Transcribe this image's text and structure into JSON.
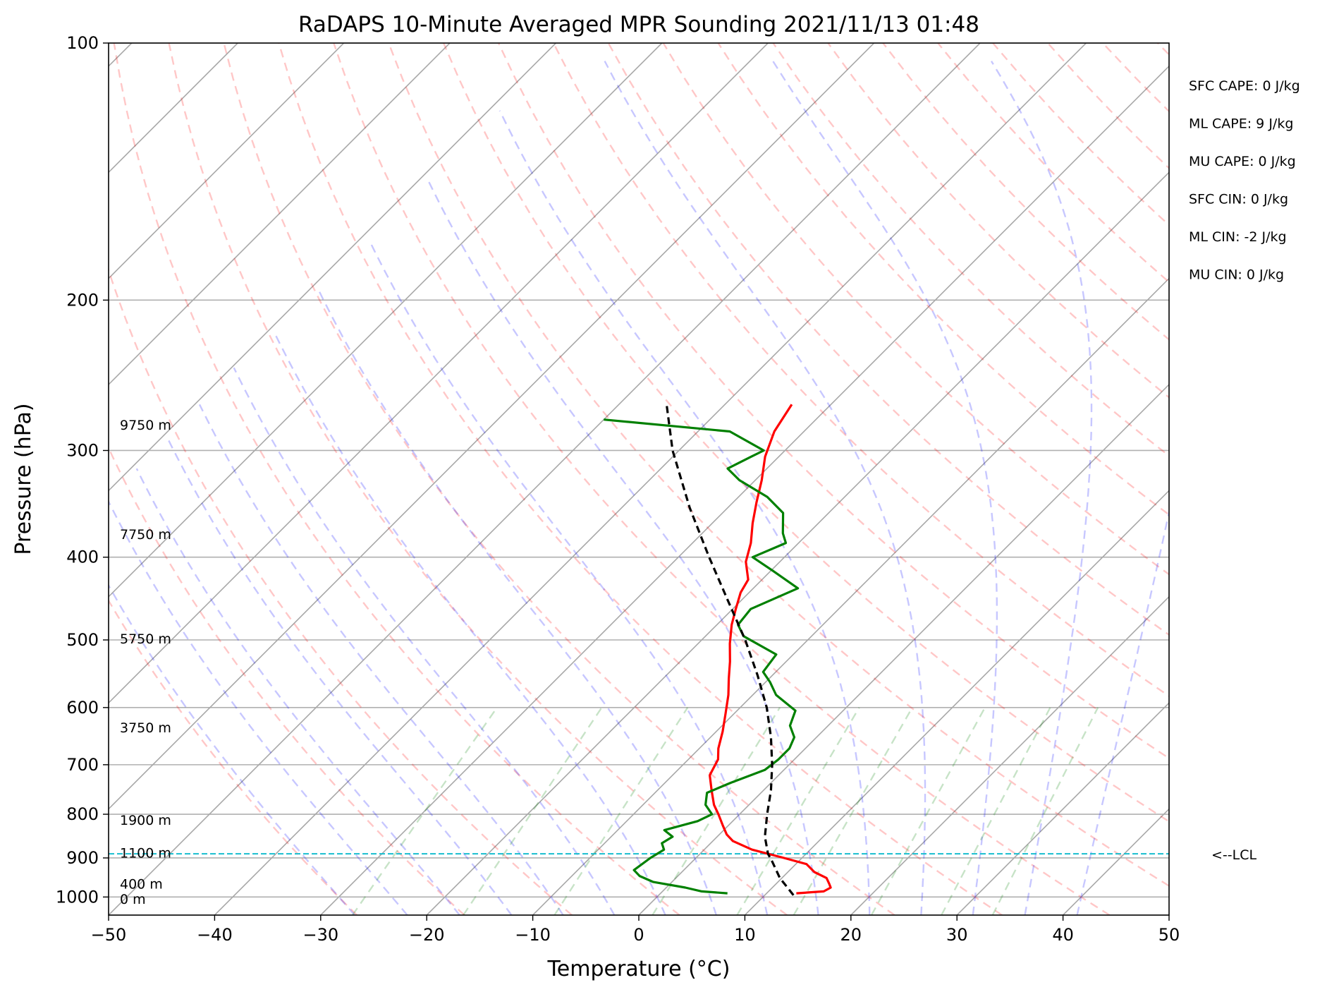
{
  "chart_data": {
    "type": "line",
    "subtype": "skew-T log-p sounding",
    "title": "RaDAPS 10-Minute Averaged MPR Sounding 2021/11/13 01:48",
    "xlabel": "Temperature (°C)",
    "ylabel": "Pressure (hPa)",
    "xlim": [
      -50,
      50
    ],
    "ylim": [
      1050,
      100
    ],
    "yscale": "log",
    "x_ticks": [
      -50,
      -40,
      -30,
      -20,
      -10,
      0,
      10,
      20,
      30,
      40,
      50
    ],
    "x_tick_labels": [
      "−50",
      "−40",
      "−30",
      "−20",
      "−10",
      "0",
      "10",
      "20",
      "30",
      "40",
      "50"
    ],
    "y_ticks": [
      100,
      200,
      300,
      400,
      500,
      600,
      700,
      800,
      900,
      1000
    ],
    "y_tick_labels": [
      "100",
      "200",
      "300",
      "400",
      "500",
      "600",
      "700",
      "800",
      "900",
      "1000"
    ],
    "grid": true,
    "height_labels": [
      {
        "text": "9750 m",
        "p": 280
      },
      {
        "text": "7750 m",
        "p": 376
      },
      {
        "text": "5750 m",
        "p": 498
      },
      {
        "text": "3750 m",
        "p": 633
      },
      {
        "text": "1900 m",
        "p": 812
      },
      {
        "text": "1100 m",
        "p": 887
      },
      {
        "text": "400 m",
        "p": 965
      },
      {
        "text": "0 m",
        "p": 1005
      }
    ],
    "lcl": {
      "p": 890,
      "label": "<--LCL",
      "color": "#17becf"
    },
    "stats": [
      {
        "text": "SFC CAPE: 0 J/kg"
      },
      {
        "text": "ML CAPE: 9 J/kg"
      },
      {
        "text": "MU CAPE: 0 J/kg"
      },
      {
        "text": "SFC CIN: 0 J/kg"
      },
      {
        "text": "ML CIN: -2 J/kg"
      },
      {
        "text": "MU CIN: 0 J/kg"
      }
    ],
    "series": [
      {
        "role": "temperature",
        "color": "#ff0000",
        "p": [
          990,
          985,
          975,
          965,
          950,
          935,
          915,
          900,
          880,
          860,
          845,
          825,
          800,
          780,
          750,
          720,
          690,
          670,
          640,
          610,
          580,
          555,
          530,
          505,
          480,
          460,
          440,
          425,
          405,
          385,
          365,
          345,
          325,
          305,
          285,
          265
        ],
        "t": [
          12.8,
          15.2,
          15.5,
          15.0,
          14.2,
          12.5,
          11.0,
          8.3,
          4.5,
          1.9,
          0.7,
          -0.5,
          -2.0,
          -3.3,
          -4.9,
          -6.5,
          -7.2,
          -8.2,
          -9.4,
          -10.8,
          -12.3,
          -13.8,
          -15.3,
          -17.0,
          -18.6,
          -19.7,
          -20.8,
          -21.3,
          -23.2,
          -24.5,
          -26.2,
          -27.8,
          -29.4,
          -31.3,
          -32.8,
          -33.7
        ]
      },
      {
        "role": "dewpoint",
        "color": "#008000",
        "p": [
          990,
          985,
          975,
          960,
          945,
          930,
          900,
          880,
          865,
          850,
          835,
          815,
          800,
          780,
          755,
          735,
          710,
          690,
          670,
          650,
          630,
          605,
          580,
          560,
          545,
          520,
          495,
          480,
          460,
          435,
          415,
          400,
          385,
          375,
          355,
          340,
          325,
          315,
          305,
          300,
          285,
          276
        ],
        "t": [
          6.3,
          3.7,
          1.8,
          -1.8,
          -3.6,
          -4.7,
          -4.3,
          -3.8,
          -4.6,
          -4.2,
          -5.6,
          -3.3,
          -2.6,
          -4.1,
          -5.1,
          -3.8,
          -1.8,
          -1.5,
          -1.5,
          -2.1,
          -3.6,
          -4.5,
          -7.8,
          -9.6,
          -11.2,
          -11.6,
          -16.4,
          -18.0,
          -18.3,
          -15.8,
          -19.8,
          -23.0,
          -21.2,
          -22.4,
          -24.3,
          -27.3,
          -31.5,
          -33.7,
          -32.6,
          -32.0,
          -37.0,
          -50.0
        ]
      },
      {
        "role": "parcel",
        "color": "#000000",
        "dashed": true,
        "p": [
          995,
          950,
          910,
          890,
          850,
          800,
          750,
          700,
          650,
          600,
          550,
          500,
          450,
          400,
          350,
          300,
          265
        ],
        "t": [
          12.7,
          9.8,
          7.6,
          6.4,
          4.5,
          2.6,
          0.7,
          -1.6,
          -4.3,
          -7.5,
          -11.4,
          -15.9,
          -21.2,
          -27.1,
          -33.6,
          -40.6,
          -45.5
        ]
      }
    ]
  }
}
